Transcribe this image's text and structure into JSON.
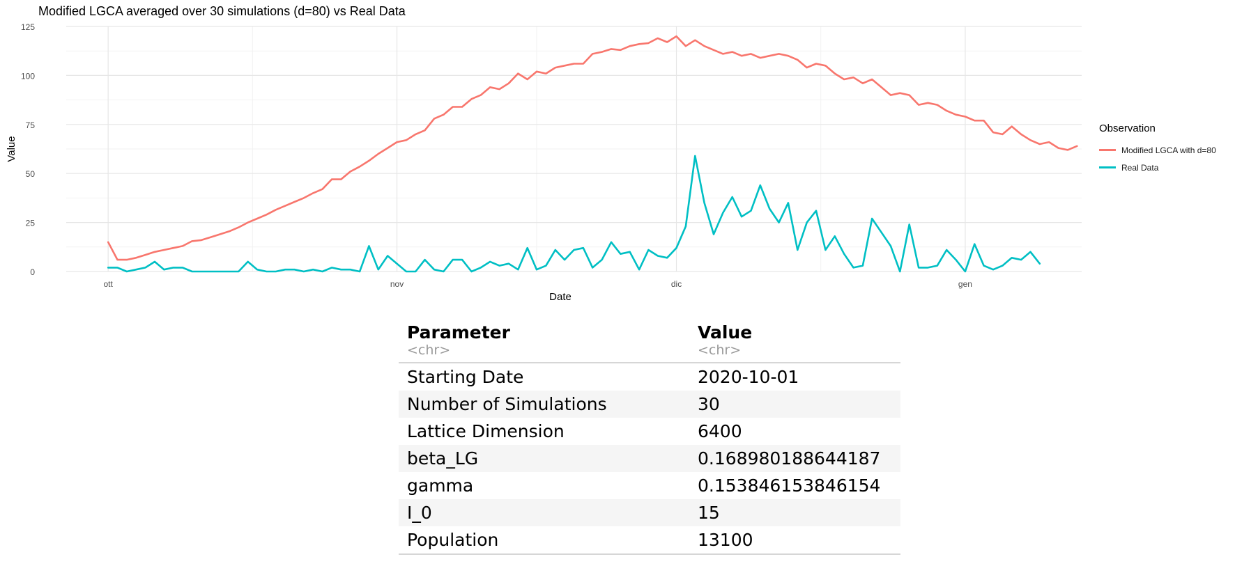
{
  "chart_data": {
    "type": "line",
    "title": "Modified LGCA averaged over 30 simulations (d=80) vs Real Data",
    "xlabel": "Date",
    "ylabel": "Value",
    "x_start": "2020-10-01",
    "x_ticks": [
      {
        "date": "2020-10-01",
        "label": "ott"
      },
      {
        "date": "2020-11-01",
        "label": "nov"
      },
      {
        "date": "2020-12-01",
        "label": "dic"
      },
      {
        "date": "2021-01-01",
        "label": "gen"
      }
    ],
    "ylim": [
      0,
      125
    ],
    "y_ticks": [
      0,
      25,
      50,
      75,
      100,
      125
    ],
    "grid": true,
    "legend": {
      "title": "Observation",
      "position": "right"
    },
    "series": [
      {
        "name": "Modified LGCA with d=80",
        "color": "#F8766D",
        "values": [
          15,
          6,
          6,
          7,
          8.5,
          10,
          11,
          12,
          13,
          15.5,
          16,
          17.5,
          19,
          20.5,
          22.5,
          25,
          27,
          29,
          31.5,
          33.5,
          35.5,
          37.5,
          40,
          42,
          47,
          47,
          51,
          53.5,
          56.5,
          60,
          63,
          66,
          67,
          70,
          72,
          78,
          80,
          84,
          84,
          88,
          90,
          94,
          93,
          96,
          101,
          98,
          102,
          101,
          104,
          105,
          106,
          106,
          111,
          112,
          113.5,
          113,
          115,
          116,
          116.5,
          119,
          117,
          120,
          115,
          118,
          115,
          113,
          111,
          112,
          110,
          111,
          109,
          110,
          111,
          110,
          108,
          104,
          106,
          105,
          101,
          98,
          99,
          96,
          98,
          94,
          90,
          91,
          90,
          85,
          86,
          85,
          82,
          80,
          79,
          77,
          77,
          71,
          70,
          74,
          70,
          67,
          65,
          66,
          63,
          62,
          64
        ]
      },
      {
        "name": "Real Data",
        "color": "#00BFC4",
        "values": [
          2,
          2,
          0,
          1,
          2,
          5,
          1,
          2,
          2,
          0,
          0,
          0,
          0,
          0,
          0,
          5,
          1,
          0,
          0,
          1,
          1,
          0,
          1,
          0,
          2,
          1,
          1,
          0,
          13,
          1,
          8,
          4,
          0,
          0,
          6,
          1,
          0,
          6,
          6,
          0,
          2,
          5,
          3,
          4,
          1,
          12,
          1,
          3,
          11,
          6,
          11,
          12,
          2,
          6,
          15,
          9,
          10,
          1,
          11,
          8,
          7,
          12,
          23,
          59,
          35,
          19,
          30,
          38,
          28,
          31,
          44,
          32,
          25,
          35,
          11,
          25,
          31,
          11,
          18,
          9,
          2,
          3,
          27,
          20,
          13,
          0,
          24,
          2,
          2,
          3,
          11,
          6,
          0,
          14,
          3,
          1,
          3,
          7,
          6,
          10,
          4
        ]
      }
    ]
  },
  "table": {
    "headers": [
      {
        "name": "Parameter",
        "type": "<chr>"
      },
      {
        "name": "Value",
        "type": "<chr>"
      }
    ],
    "rows": [
      [
        "Starting Date",
        "2020-10-01"
      ],
      [
        "Number of Simulations",
        "30"
      ],
      [
        "Lattice Dimension",
        "6400"
      ],
      [
        "beta_LG",
        "0.168980188644187"
      ],
      [
        "gamma",
        "0.153846153846154"
      ],
      [
        "I_0",
        "15"
      ],
      [
        "Population",
        "13100"
      ]
    ]
  }
}
